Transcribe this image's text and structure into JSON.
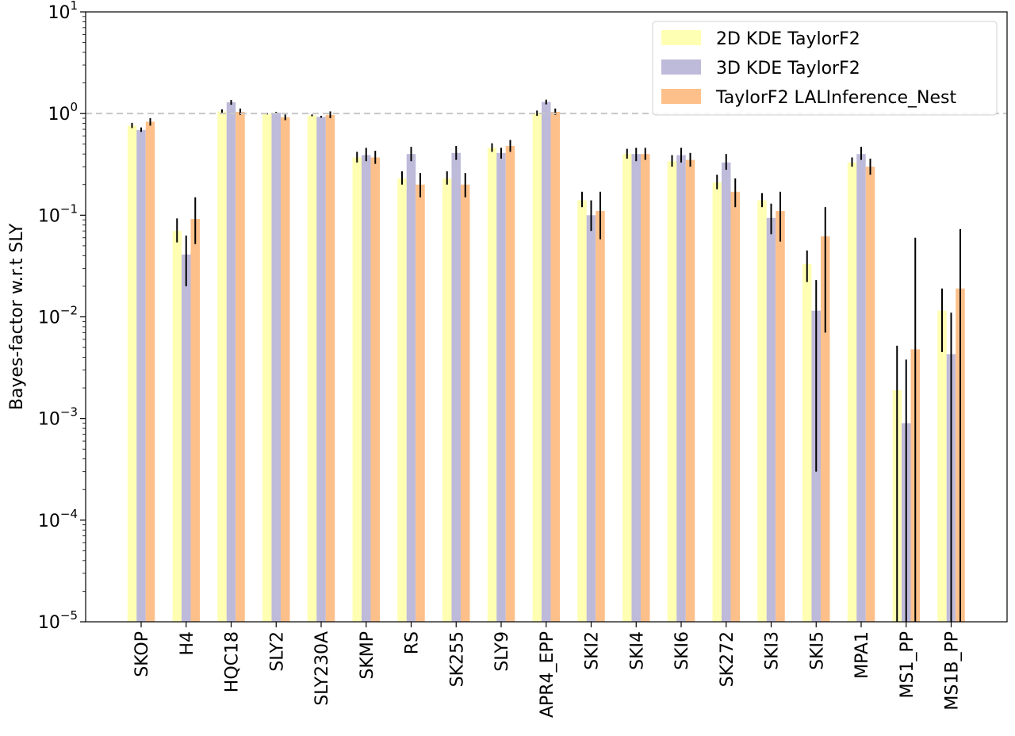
{
  "chart_data": {
    "type": "bar",
    "yscale": "log",
    "ylim": [
      1e-05,
      10
    ],
    "ylabel": "Bayes-factor w.r.t SLY",
    "xlabel": "",
    "title": "",
    "legend_position": "top-right",
    "reference_line": {
      "y": 1,
      "style": "dashed",
      "color": "#c8c8c8"
    },
    "y_ticks": [
      {
        "value": 1e-05,
        "base": "10",
        "exp": "−5"
      },
      {
        "value": 0.0001,
        "base": "10",
        "exp": "−4"
      },
      {
        "value": 0.001,
        "base": "10",
        "exp": "−3"
      },
      {
        "value": 0.01,
        "base": "10",
        "exp": "−2"
      },
      {
        "value": 0.1,
        "base": "10",
        "exp": "−1"
      },
      {
        "value": 1,
        "base": "10",
        "exp": "0"
      },
      {
        "value": 10,
        "base": "10",
        "exp": "1"
      }
    ],
    "categories": [
      "SKOP",
      "H4",
      "HQC18",
      "SLY2",
      "SLY230A",
      "SKMP",
      "RS",
      "SK255",
      "SLY9",
      "APR4_EPP",
      "SKI2",
      "SKI4",
      "SKI6",
      "SK272",
      "SKI3",
      "SKI5",
      "MPA1",
      "MS1_PP",
      "MS1B_PP"
    ],
    "series": [
      {
        "name": "2D KDE TaylorF2",
        "color": "#ffffb3",
        "values": [
          0.76,
          0.07,
          1.05,
          0.99,
          0.96,
          0.37,
          0.23,
          0.23,
          0.46,
          1.01,
          0.14,
          0.4,
          0.34,
          0.21,
          0.14,
          0.033,
          0.33,
          0.0019,
          0.0115
        ],
        "err_low": [
          0.72,
          0.054,
          1.0,
          0.98,
          0.94,
          0.33,
          0.2,
          0.2,
          0.42,
          0.95,
          0.12,
          0.36,
          0.3,
          0.18,
          0.12,
          0.022,
          0.3,
          1e-05,
          0.0045
        ],
        "err_high": [
          0.81,
          0.093,
          1.1,
          1.01,
          0.98,
          0.42,
          0.27,
          0.27,
          0.51,
          1.07,
          0.17,
          0.45,
          0.39,
          0.25,
          0.165,
          0.045,
          0.37,
          0.0052,
          0.019
        ]
      },
      {
        "name": "3D KDE TaylorF2",
        "color": "#bebada",
        "values": [
          0.69,
          0.041,
          1.29,
          1.02,
          0.93,
          0.39,
          0.4,
          0.41,
          0.41,
          1.3,
          0.1,
          0.4,
          0.39,
          0.33,
          0.094,
          0.0115,
          0.4,
          0.0009,
          0.0043
        ],
        "err_low": [
          0.66,
          0.02,
          1.22,
          1.0,
          0.91,
          0.34,
          0.34,
          0.35,
          0.36,
          1.23,
          0.07,
          0.34,
          0.33,
          0.28,
          0.065,
          0.0003,
          0.35,
          1e-05,
          1e-05
        ],
        "err_high": [
          0.73,
          0.063,
          1.36,
          1.04,
          0.95,
          0.46,
          0.47,
          0.48,
          0.46,
          1.37,
          0.14,
          0.46,
          0.46,
          0.4,
          0.13,
          0.023,
          0.47,
          0.0038,
          0.011
        ]
      },
      {
        "name": "TaylorF2 LALInference_Nest",
        "color": "#fdc08a",
        "values": [
          0.83,
          0.092,
          1.04,
          0.92,
          0.97,
          0.37,
          0.2,
          0.2,
          0.48,
          1.04,
          0.11,
          0.4,
          0.35,
          0.17,
          0.11,
          0.062,
          0.3,
          0.0048,
          0.019
        ],
        "err_low": [
          0.76,
          0.052,
          0.97,
          0.86,
          0.9,
          0.32,
          0.15,
          0.15,
          0.42,
          0.97,
          0.058,
          0.35,
          0.3,
          0.12,
          0.055,
          0.007,
          0.25,
          1e-05,
          1e-05
        ],
        "err_high": [
          0.9,
          0.15,
          1.12,
          0.98,
          1.05,
          0.43,
          0.26,
          0.26,
          0.55,
          1.12,
          0.17,
          0.46,
          0.41,
          0.23,
          0.17,
          0.12,
          0.36,
          0.06,
          0.073
        ]
      }
    ]
  }
}
